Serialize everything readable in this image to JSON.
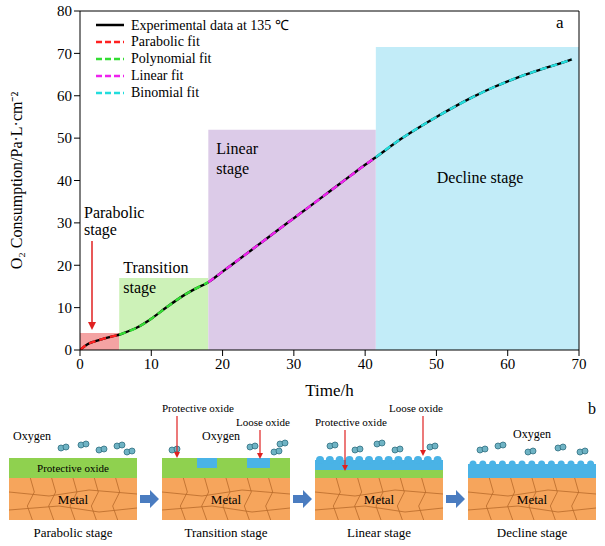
{
  "chart_data": {
    "type": "line",
    "panel": "a",
    "x_label": "Time/h",
    "y_label": "O₂ Consumption/Pa·L·cm⁻²",
    "legend": "upper left",
    "xlim": [
      0,
      70
    ],
    "xticks": [
      0,
      10,
      20,
      30,
      40,
      50,
      60,
      70
    ],
    "ylim": [
      0,
      80
    ],
    "yticks": [
      0,
      10,
      20,
      30,
      40,
      50,
      60,
      70,
      80
    ],
    "x": [
      0,
      1,
      2,
      3,
      4,
      5,
      5.5,
      6,
      8,
      10,
      12,
      14,
      16,
      18,
      20,
      22,
      25,
      28,
      30,
      32,
      35,
      38,
      40,
      41.5,
      45,
      48,
      50,
      52,
      55,
      58,
      60,
      62,
      65,
      68,
      69
    ],
    "series": [
      {
        "name": "Experimental data at 135 ℃",
        "color": "#000000",
        "line_style": "solid",
        "values": [
          0,
          1.3,
          2.0,
          2.5,
          3.0,
          3.4,
          3.6,
          3.9,
          5.3,
          7.4,
          9.9,
          12.3,
          14.3,
          16.0,
          18.5,
          21.0,
          24.8,
          28.6,
          31.1,
          33.6,
          37.4,
          41.2,
          43.7,
          45.5,
          49.8,
          53.0,
          55.0,
          56.9,
          59.6,
          62.0,
          63.4,
          64.7,
          66.4,
          68.0,
          68.6
        ]
      },
      {
        "name": "Parabolic fit",
        "color": "#ff2020",
        "line_style": "dashed",
        "values": [
          0,
          1.3,
          2.0,
          2.5,
          3.0,
          3.4,
          3.6,
          null,
          null,
          null,
          null,
          null,
          null,
          null,
          null,
          null,
          null,
          null,
          null,
          null,
          null,
          null,
          null,
          null,
          null,
          null,
          null,
          null,
          null,
          null,
          null,
          null,
          null,
          null,
          null
        ]
      },
      {
        "name": "Polynomial fit",
        "color": "#33dd33",
        "line_style": "dashed",
        "values": [
          null,
          null,
          null,
          null,
          null,
          null,
          3.6,
          3.9,
          5.3,
          7.4,
          9.9,
          12.3,
          14.3,
          16.0,
          null,
          null,
          null,
          null,
          null,
          null,
          null,
          null,
          null,
          null,
          null,
          null,
          null,
          null,
          null,
          null,
          null,
          null,
          null,
          null,
          null
        ]
      },
      {
        "name": "Linear fit",
        "color": "#ee22ee",
        "line_style": "dashed",
        "values": [
          null,
          null,
          null,
          null,
          null,
          null,
          null,
          null,
          null,
          null,
          null,
          null,
          null,
          16.0,
          18.5,
          21.0,
          24.8,
          28.6,
          31.1,
          33.6,
          37.4,
          41.2,
          43.7,
          45.5,
          null,
          null,
          null,
          null,
          null,
          null,
          null,
          null,
          null,
          null,
          null
        ]
      },
      {
        "name": "Binomial fit",
        "color": "#22dddd",
        "line_style": "dashed",
        "values": [
          null,
          null,
          null,
          null,
          null,
          null,
          null,
          null,
          null,
          null,
          null,
          null,
          null,
          null,
          null,
          null,
          null,
          null,
          null,
          null,
          null,
          null,
          null,
          45.5,
          49.8,
          53.0,
          55.0,
          56.9,
          59.6,
          62.0,
          63.4,
          64.7,
          66.4,
          68.0,
          68.6
        ]
      }
    ],
    "regions": [
      {
        "label": "Parabolic stage",
        "x": [
          0,
          5.5
        ],
        "y": [
          0,
          4
        ],
        "color": "#f4a3a3"
      },
      {
        "label": "Transition stage",
        "x": [
          5.5,
          18
        ],
        "y": [
          0,
          17
        ],
        "color": "#cdf2b8"
      },
      {
        "label": "Linear stage",
        "x": [
          18,
          41.5
        ],
        "y": [
          0,
          52
        ],
        "color": "#dccbe8"
      },
      {
        "label": "Decline stage",
        "x": [
          41.5,
          70
        ],
        "y": [
          0,
          71.5
        ],
        "color": "#c2ecf8"
      }
    ]
  },
  "diagram": {
    "label": "b",
    "panels": [
      {
        "caption": "Parabolic stage",
        "oxygen": "Oxygen",
        "protective_oxide": "Protective oxide",
        "metal": "Metal"
      },
      {
        "caption": "Transition stage",
        "oxygen": "Oxygen",
        "protective_oxide": "Protective oxide",
        "loose_oxide": "Loose oxide",
        "metal": "Metal"
      },
      {
        "caption": "Linear stage",
        "protective_oxide": "Protective oxide",
        "loose_oxide": "Loose oxide",
        "metal": "Metal"
      },
      {
        "caption": "Decline stage",
        "oxygen": "Oxygen",
        "metal": "Metal"
      }
    ]
  }
}
